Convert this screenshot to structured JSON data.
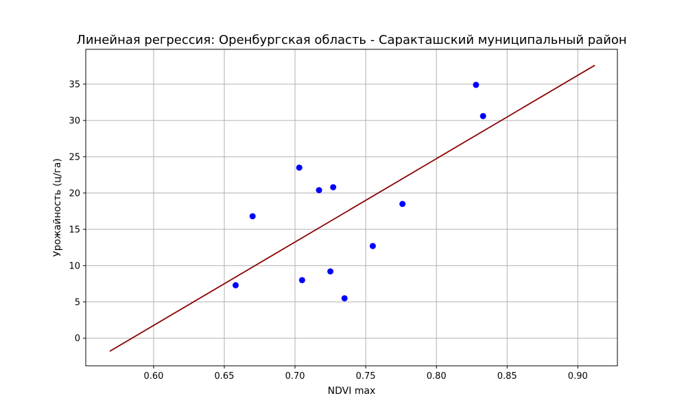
{
  "chart_data": {
    "type": "scatter",
    "title": "Линейная регрессия: Оренбургская область - Саракташский муниципальный район",
    "xlabel": "NDVI max",
    "ylabel": "Урожайность (ц/га)",
    "xlim": [
      0.552,
      0.928
    ],
    "ylim": [
      -3.8,
      39.8
    ],
    "xticks": [
      0.6,
      0.65,
      0.7,
      0.75,
      0.8,
      0.85,
      0.9
    ],
    "xtick_labels": [
      "0.60",
      "0.65",
      "0.70",
      "0.75",
      "0.80",
      "0.85",
      "0.90"
    ],
    "yticks": [
      0,
      5,
      10,
      15,
      20,
      25,
      30,
      35
    ],
    "ytick_labels": [
      "0",
      "5",
      "10",
      "15",
      "20",
      "25",
      "30",
      "35"
    ],
    "grid": true,
    "series": [
      {
        "kind": "scatter",
        "color": "#0000ff",
        "points": [
          {
            "x": 0.658,
            "y": 7.3
          },
          {
            "x": 0.67,
            "y": 16.8
          },
          {
            "x": 0.703,
            "y": 23.5
          },
          {
            "x": 0.705,
            "y": 8.0
          },
          {
            "x": 0.717,
            "y": 20.4
          },
          {
            "x": 0.725,
            "y": 9.2
          },
          {
            "x": 0.727,
            "y": 20.8
          },
          {
            "x": 0.735,
            "y": 5.5
          },
          {
            "x": 0.755,
            "y": 12.7
          },
          {
            "x": 0.776,
            "y": 18.5
          },
          {
            "x": 0.828,
            "y": 34.9
          },
          {
            "x": 0.833,
            "y": 30.6
          }
        ]
      },
      {
        "kind": "line",
        "color": "#8b0000",
        "points": [
          {
            "x": 0.569,
            "y": -1.8
          },
          {
            "x": 0.912,
            "y": 37.6
          }
        ]
      }
    ]
  }
}
